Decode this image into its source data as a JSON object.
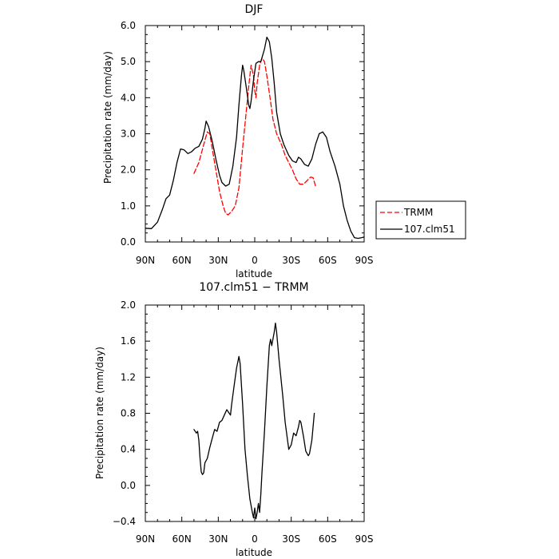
{
  "chart_data": [
    {
      "type": "line",
      "title": "DJF",
      "xlabel": "latitude",
      "ylabel": "Precipitation rate (mm/day)",
      "xlim": [
        90,
        -90
      ],
      "ylim": [
        0.0,
        6.0
      ],
      "x_ticks": [
        90,
        60,
        30,
        0,
        -30,
        -60,
        -90
      ],
      "x_tick_labels": [
        "90N",
        "60N",
        "30N",
        "0",
        "30S",
        "60S",
        "90S"
      ],
      "y_ticks": [
        0,
        1,
        2,
        3,
        4,
        5,
        6
      ],
      "y_tick_labels": [
        "0.0",
        "1.0",
        "2.0",
        "3.0",
        "4.0",
        "5.0",
        "6.0"
      ],
      "legend_position": "right",
      "series": [
        {
          "name": "TRMM",
          "color": "#ff0000",
          "dash": "dashed",
          "points": [
            [
              50,
              1.9
            ],
            [
              46,
              2.2
            ],
            [
              42,
              2.7
            ],
            [
              39,
              3.05
            ],
            [
              37,
              3.0
            ],
            [
              35,
              2.6
            ],
            [
              32,
              2.0
            ],
            [
              29,
              1.4
            ],
            [
              26,
              1.0
            ],
            [
              24,
              0.8
            ],
            [
              22,
              0.75
            ],
            [
              19,
              0.85
            ],
            [
              16,
              1.0
            ],
            [
              13,
              1.5
            ],
            [
              10,
              2.6
            ],
            [
              7,
              3.6
            ],
            [
              5,
              4.3
            ],
            [
              3,
              4.9
            ],
            [
              1,
              4.6
            ],
            [
              0,
              4.2
            ],
            [
              -1,
              4.0
            ],
            [
              -2,
              4.4
            ],
            [
              -4,
              4.9
            ],
            [
              -6,
              5.1
            ],
            [
              -8,
              5.0
            ],
            [
              -10,
              4.6
            ],
            [
              -13,
              3.9
            ],
            [
              -15,
              3.4
            ],
            [
              -18,
              3.0
            ],
            [
              -22,
              2.7
            ],
            [
              -25,
              2.4
            ],
            [
              -28,
              2.2
            ],
            [
              -31,
              2.0
            ],
            [
              -34,
              1.75
            ],
            [
              -37,
              1.6
            ],
            [
              -40,
              1.6
            ],
            [
              -43,
              1.7
            ],
            [
              -46,
              1.8
            ],
            [
              -48,
              1.78
            ],
            [
              -50,
              1.55
            ]
          ]
        },
        {
          "name": "107.clm51",
          "color": "#000000",
          "dash": "solid",
          "points": [
            [
              90,
              0.38
            ],
            [
              85,
              0.37
            ],
            [
              80,
              0.55
            ],
            [
              76,
              0.9
            ],
            [
              73,
              1.2
            ],
            [
              70,
              1.3
            ],
            [
              67,
              1.7
            ],
            [
              64,
              2.2
            ],
            [
              61,
              2.58
            ],
            [
              58,
              2.55
            ],
            [
              55,
              2.45
            ],
            [
              52,
              2.5
            ],
            [
              49,
              2.6
            ],
            [
              46,
              2.65
            ],
            [
              43,
              2.85
            ],
            [
              41,
              3.15
            ],
            [
              40,
              3.35
            ],
            [
              38,
              3.2
            ],
            [
              35,
              2.8
            ],
            [
              32,
              2.3
            ],
            [
              29,
              1.85
            ],
            [
              27,
              1.65
            ],
            [
              24,
              1.55
            ],
            [
              21,
              1.6
            ],
            [
              18,
              2.1
            ],
            [
              15,
              2.9
            ],
            [
              13,
              3.8
            ],
            [
              11,
              4.6
            ],
            [
              10,
              4.9
            ],
            [
              9,
              4.75
            ],
            [
              7,
              4.3
            ],
            [
              5,
              3.8
            ],
            [
              4,
              3.7
            ],
            [
              3,
              3.9
            ],
            [
              1,
              4.5
            ],
            [
              -1,
              4.95
            ],
            [
              -3,
              5.0
            ],
            [
              -5,
              5.0
            ],
            [
              -8,
              5.35
            ],
            [
              -10,
              5.68
            ],
            [
              -12,
              5.55
            ],
            [
              -14,
              5.1
            ],
            [
              -16,
              4.4
            ],
            [
              -18,
              3.6
            ],
            [
              -21,
              3.0
            ],
            [
              -24,
              2.7
            ],
            [
              -28,
              2.4
            ],
            [
              -31,
              2.25
            ],
            [
              -34,
              2.2
            ],
            [
              -36,
              2.35
            ],
            [
              -38,
              2.3
            ],
            [
              -41,
              2.15
            ],
            [
              -44,
              2.1
            ],
            [
              -47,
              2.3
            ],
            [
              -50,
              2.7
            ],
            [
              -53,
              3.0
            ],
            [
              -56,
              3.05
            ],
            [
              -59,
              2.9
            ],
            [
              -62,
              2.5
            ],
            [
              -66,
              2.1
            ],
            [
              -70,
              1.6
            ],
            [
              -73,
              1.0
            ],
            [
              -76,
              0.6
            ],
            [
              -79,
              0.3
            ],
            [
              -82,
              0.12
            ],
            [
              -85,
              0.1
            ],
            [
              -88,
              0.12
            ],
            [
              -90,
              0.14
            ]
          ]
        }
      ]
    },
    {
      "type": "line",
      "title": "107.clm51 − TRMM",
      "xlabel": "latitude",
      "ylabel": "Precipitation rate (mm/day)",
      "xlim": [
        90,
        -90
      ],
      "ylim": [
        -0.4,
        2.0
      ],
      "x_ticks": [
        90,
        60,
        30,
        0,
        -30,
        -60,
        -90
      ],
      "x_tick_labels": [
        "90N",
        "60N",
        "30N",
        "0",
        "30S",
        "60S",
        "90S"
      ],
      "y_ticks": [
        -0.4,
        0.0,
        0.4,
        0.8,
        1.2,
        1.6,
        2.0
      ],
      "y_tick_labels": [
        "−0.4",
        "0.0",
        "0.4",
        "0.8",
        "1.2",
        "1.6",
        "2.0"
      ],
      "series": [
        {
          "name": "",
          "color": "#000000",
          "dash": "solid",
          "points": [
            [
              50,
              0.62
            ],
            [
              48,
              0.58
            ],
            [
              47,
              0.6
            ],
            [
              46,
              0.5
            ],
            [
              45,
              0.3
            ],
            [
              44,
              0.15
            ],
            [
              43,
              0.12
            ],
            [
              42,
              0.14
            ],
            [
              41,
              0.25
            ],
            [
              39,
              0.3
            ],
            [
              37,
              0.42
            ],
            [
              35,
              0.52
            ],
            [
              33,
              0.62
            ],
            [
              31,
              0.6
            ],
            [
              29,
              0.7
            ],
            [
              27,
              0.72
            ],
            [
              25,
              0.78
            ],
            [
              23,
              0.84
            ],
            [
              21,
              0.8
            ],
            [
              20,
              0.78
            ],
            [
              19,
              0.9
            ],
            [
              17,
              1.1
            ],
            [
              15,
              1.3
            ],
            [
              13,
              1.43
            ],
            [
              12,
              1.35
            ],
            [
              10,
              0.9
            ],
            [
              8,
              0.4
            ],
            [
              6,
              0.1
            ],
            [
              4,
              -0.15
            ],
            [
              2,
              -0.3
            ],
            [
              1,
              -0.36
            ],
            [
              0,
              -0.25
            ],
            [
              -1,
              -0.37
            ],
            [
              -2,
              -0.3
            ],
            [
              -3,
              -0.2
            ],
            [
              -4,
              -0.3
            ],
            [
              -5,
              -0.1
            ],
            [
              -6,
              0.15
            ],
            [
              -8,
              0.6
            ],
            [
              -10,
              1.1
            ],
            [
              -12,
              1.55
            ],
            [
              -13,
              1.62
            ],
            [
              -14,
              1.55
            ],
            [
              -16,
              1.7
            ],
            [
              -17,
              1.8
            ],
            [
              -18,
              1.7
            ],
            [
              -20,
              1.4
            ],
            [
              -23,
              1.0
            ],
            [
              -25,
              0.7
            ],
            [
              -27,
              0.5
            ],
            [
              -28,
              0.4
            ],
            [
              -30,
              0.45
            ],
            [
              -32,
              0.58
            ],
            [
              -34,
              0.55
            ],
            [
              -36,
              0.65
            ],
            [
              -37,
              0.72
            ],
            [
              -38,
              0.7
            ],
            [
              -40,
              0.55
            ],
            [
              -42,
              0.38
            ],
            [
              -44,
              0.33
            ],
            [
              -45,
              0.35
            ],
            [
              -47,
              0.5
            ],
            [
              -49,
              0.8
            ]
          ]
        }
      ]
    }
  ]
}
